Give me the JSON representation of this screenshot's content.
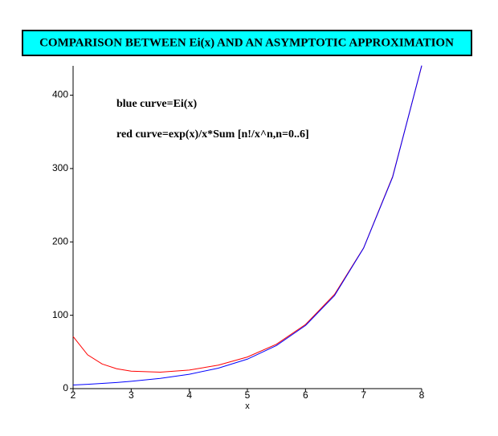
{
  "chart_data": {
    "type": "line",
    "title": "COMPARISON BETWEEN Ei(x) AND AN ASYMPTOTIC APPROXIMATION",
    "annotations": [
      "blue curve=Ei(x)",
      "red curve=exp(x)/x*Sum [n!/x^n,n=0..6]"
    ],
    "x_label": "x",
    "x": [
      2,
      2.25,
      2.5,
      2.75,
      3,
      3.5,
      4,
      4.5,
      5,
      5.5,
      6,
      6.5,
      7,
      7.5,
      8
    ],
    "series": [
      {
        "name": "red curve",
        "color": "#ff0000",
        "values": [
          71.1,
          46.1,
          33.6,
          27.1,
          23.8,
          22.4,
          25.3,
          32.0,
          43.1,
          60.5,
          87.4,
          128.5,
          191.8,
          289.2,
          439.8
        ]
      },
      {
        "name": "blue curve",
        "color": "#0000ff",
        "values": [
          4.95,
          5.93,
          7.07,
          8.36,
          9.93,
          13.9,
          19.6,
          27.9,
          40.2,
          58.8,
          86.0,
          126.9,
          191.5,
          288.3,
          440.4
        ]
      }
    ],
    "xlim": [
      2,
      8
    ],
    "xticks": [
      2,
      3,
      4,
      5,
      6,
      7,
      8
    ],
    "ylim": [
      0,
      440
    ],
    "yticks": [
      0,
      100,
      200,
      300,
      400
    ]
  }
}
